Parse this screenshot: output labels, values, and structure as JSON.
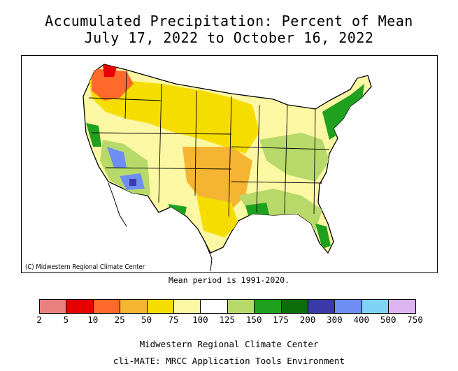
{
  "title_line1": "Accumulated Precipitation: Percent of Mean",
  "title_line2": "July 17, 2022 to October 16, 2022",
  "map": {
    "region": "Contiguous United States",
    "copyright": "(C) Midwestern Regional Climate Center"
  },
  "mean_period": "Mean period is 1991-2020.",
  "legend": {
    "ticks": [
      "2",
      "5",
      "10",
      "25",
      "50",
      "75",
      "100",
      "125",
      "150",
      "175",
      "200",
      "300",
      "400",
      "500",
      "750"
    ],
    "colors": [
      "#e88080",
      "#e60000",
      "#ff6a2a",
      "#f5b431",
      "#f6dd00",
      "#fcf7a3",
      "#ffffff",
      "#b7d96a",
      "#1fa01f",
      "#0a6e0a",
      "#3a3aa8",
      "#6e8ef5",
      "#7fd3f5",
      "#dcb4f0",
      "#b060c8"
    ]
  },
  "footer_line1": "Midwestern Regional Climate Center",
  "footer_line2": "cli-MATE: MRCC Application Tools Environment"
}
